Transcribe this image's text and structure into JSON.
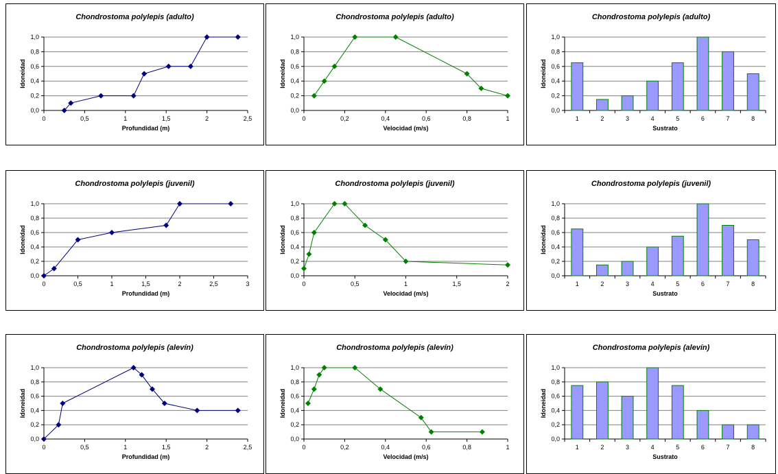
{
  "chart_data": [
    {
      "id": "p1",
      "type": "line",
      "title": "Chondrostoma polylepis  (adulto)",
      "xlabel": "Profundidad (m)",
      "ylabel": "Idoneidad",
      "xlim": [
        0,
        2.5
      ],
      "ylim": [
        0,
        1
      ],
      "xticks": [
        "0",
        "0,5",
        "1",
        "1,5",
        "2",
        "2,5"
      ],
      "yticks": [
        "0,0",
        "0,2",
        "0,4",
        "0,6",
        "0,8",
        "1,0"
      ],
      "color": "#00007f",
      "grid": true,
      "x": [
        0.25,
        0.33,
        0.7,
        1.1,
        1.23,
        1.53,
        1.8,
        2.0,
        2.38
      ],
      "y": [
        0.0,
        0.1,
        0.2,
        0.2,
        0.5,
        0.6,
        0.6,
        1.0,
        1.0
      ]
    },
    {
      "id": "p2",
      "type": "line",
      "title": "Chondrostoma polylepis (adulto)",
      "xlabel": "Velocidad (m/s)",
      "ylabel": "Idoneidad",
      "xlim": [
        0,
        1
      ],
      "ylim": [
        0,
        1
      ],
      "xticks": [
        "0",
        "0,2",
        "0,4",
        "0,6",
        "0,8",
        "1"
      ],
      "yticks": [
        "0,0",
        "0,2",
        "0,4",
        "0,6",
        "0,8",
        "1,0"
      ],
      "color": "#008000",
      "grid": true,
      "x": [
        0.05,
        0.1,
        0.15,
        0.25,
        0.45,
        0.8,
        0.87,
        1.0
      ],
      "y": [
        0.2,
        0.4,
        0.6,
        1.0,
        1.0,
        0.5,
        0.3,
        0.2
      ]
    },
    {
      "id": "p3",
      "type": "bar",
      "title": "Chondrostoma polylepis  (adulto)",
      "xlabel": "Sustrato",
      "ylabel": "Idoneidad",
      "ylim": [
        0,
        1
      ],
      "categories": [
        "1",
        "2",
        "3",
        "4",
        "5",
        "6",
        "7",
        "8"
      ],
      "yticks": [
        "0,0",
        "0,2",
        "0,4",
        "0,6",
        "0,8",
        "1,0"
      ],
      "color": "#9999ff",
      "edge": "#008000",
      "grid": true,
      "values": [
        0.65,
        0.15,
        0.2,
        0.4,
        0.65,
        1.0,
        0.8,
        0.5
      ]
    },
    {
      "id": "p4",
      "type": "line",
      "title": "Chondrostoma polylepis  (juvenil)",
      "xlabel": "Profundidad (m)",
      "ylabel": "Idoneidad",
      "xlim": [
        0,
        3
      ],
      "ylim": [
        0,
        1
      ],
      "xticks": [
        "0",
        "0,5",
        "1",
        "1,5",
        "2",
        "2,5",
        "3"
      ],
      "yticks": [
        "0,0",
        "0,2",
        "0,4",
        "0,6",
        "0,8",
        "1,0"
      ],
      "color": "#00007f",
      "grid": true,
      "x": [
        0,
        0.15,
        0.5,
        1.0,
        1.8,
        2.0,
        2.75
      ],
      "y": [
        0.0,
        0.1,
        0.5,
        0.6,
        0.7,
        1.0,
        1.0
      ]
    },
    {
      "id": "p5",
      "type": "line",
      "title": "Chondrostoma polylepis (juvenil)",
      "xlabel": "Velocidad (m/s)",
      "ylabel": "Idoneidad",
      "xlim": [
        0,
        2
      ],
      "ylim": [
        0,
        1
      ],
      "xticks": [
        "0",
        "0,5",
        "1",
        "1,5",
        "2"
      ],
      "yticks": [
        "0,0",
        "0,2",
        "0,4",
        "0,6",
        "0,8",
        "1,0"
      ],
      "color": "#008000",
      "grid": true,
      "x": [
        0,
        0.05,
        0.1,
        0.3,
        0.4,
        0.6,
        0.8,
        1.0,
        2.0
      ],
      "y": [
        0.1,
        0.3,
        0.6,
        1.0,
        1.0,
        0.7,
        0.5,
        0.2,
        0.15
      ]
    },
    {
      "id": "p6",
      "type": "bar",
      "title": "Chondrostoma polylepis  (juvenil)",
      "xlabel": "Sustrato",
      "ylabel": "Idoneidad",
      "ylim": [
        0,
        1
      ],
      "categories": [
        "1",
        "2",
        "3",
        "4",
        "5",
        "6",
        "7",
        "8"
      ],
      "yticks": [
        "0,0",
        "0,2",
        "0,4",
        "0,6",
        "0,8",
        "1,0"
      ],
      "color": "#9999ff",
      "edge": "#008000",
      "grid": true,
      "values": [
        0.65,
        0.15,
        0.2,
        0.4,
        0.55,
        1.0,
        0.7,
        0.5
      ]
    },
    {
      "id": "p7",
      "type": "line",
      "title": "Chondrostoma polylepis  (alevín)",
      "xlabel": "Profundidad (m)",
      "ylabel": "Idoneidad",
      "xlim": [
        0,
        2.5
      ],
      "ylim": [
        0,
        1
      ],
      "xticks": [
        "0",
        "0,5",
        "1",
        "1,5",
        "2",
        "2,5"
      ],
      "yticks": [
        "0,0",
        "0,2",
        "0,4",
        "0,6",
        "0,8",
        "1,0"
      ],
      "color": "#00007f",
      "grid": true,
      "x": [
        0,
        0.18,
        0.23,
        1.1,
        1.2,
        1.33,
        1.48,
        1.88,
        2.38
      ],
      "y": [
        0.0,
        0.2,
        0.5,
        1.0,
        0.9,
        0.7,
        0.5,
        0.4,
        0.4
      ]
    },
    {
      "id": "p8",
      "type": "line",
      "title": "Chondrostoma polylepis (alevín)",
      "xlabel": "Velocidad (m/s)",
      "ylabel": "Idoneidad",
      "xlim": [
        0,
        1
      ],
      "ylim": [
        0,
        1
      ],
      "xticks": [
        "0",
        "0,2",
        "0,4",
        "0,6",
        "0,8",
        "1"
      ],
      "yticks": [
        "0,0",
        "0,2",
        "0,4",
        "0,6",
        "0,8",
        "1,0"
      ],
      "color": "#008000",
      "grid": true,
      "x": [
        0.02,
        0.05,
        0.075,
        0.1,
        0.25,
        0.375,
        0.575,
        0.625,
        0.875
      ],
      "y": [
        0.5,
        0.7,
        0.9,
        1.0,
        1.0,
        0.7,
        0.3,
        0.1,
        0.1
      ]
    },
    {
      "id": "p9",
      "type": "bar",
      "title": "Chondrostoma polylepis  (alevín)",
      "xlabel": "Sustrato",
      "ylabel": "Idoneidad",
      "ylim": [
        0,
        1
      ],
      "categories": [
        "1",
        "2",
        "3",
        "4",
        "5",
        "6",
        "7",
        "8"
      ],
      "yticks": [
        "0,0",
        "0,2",
        "0,4",
        "0,6",
        "0,8",
        "1,0"
      ],
      "color": "#9999ff",
      "edge": "#008000",
      "grid": true,
      "values": [
        0.75,
        0.8,
        0.6,
        1.0,
        0.75,
        0.4,
        0.2,
        0.2
      ]
    }
  ]
}
